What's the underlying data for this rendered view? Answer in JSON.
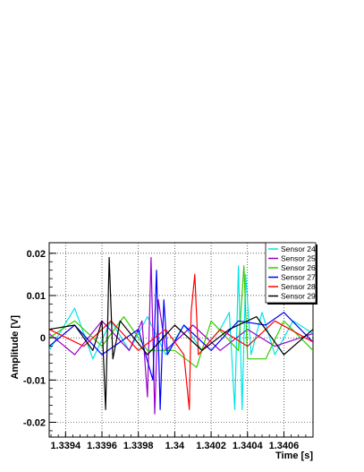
{
  "chart_data": {
    "type": "line",
    "xlabel": "Time [s]",
    "ylabel": "Amplitude [V]",
    "xlim": [
      1.33931,
      1.34076
    ],
    "ylim": [
      -0.0235,
      0.0225
    ],
    "xticks": [
      1.3394,
      1.3396,
      1.3398,
      1.34,
      1.3402,
      1.3404,
      1.3406
    ],
    "xtick_labels": [
      "1.3394",
      "1.3396",
      "1.3398",
      "1.34",
      "1.3402",
      "1.3404",
      "1.3406"
    ],
    "yticks": [
      0.02,
      0.01,
      0,
      -0.01,
      -0.02
    ],
    "ytick_labels": [
      "0.02",
      "0.01",
      "0",
      "-0.01",
      "-0.02"
    ],
    "grid": true,
    "legend_position": "top-right",
    "series": [
      {
        "name": "Sensor 24",
        "color": "#00e5e5",
        "x": [
          1.33931,
          1.33945,
          1.33955,
          1.33965,
          1.33975,
          1.33985,
          1.33995,
          1.34005,
          1.34015,
          1.34025,
          1.3403,
          1.34033,
          1.34035,
          1.34037,
          1.34039,
          1.34042,
          1.34048,
          1.34055,
          1.34065,
          1.34076
        ],
        "y": [
          -0.003,
          0.007,
          -0.005,
          0.004,
          -0.003,
          0.005,
          -0.004,
          0.003,
          -0.003,
          0.002,
          0.006,
          -0.017,
          0.017,
          -0.017,
          0.015,
          -0.004,
          0.006,
          -0.004,
          0.004,
          0.001
        ]
      },
      {
        "name": "Sensor 25",
        "color": "#9900cc",
        "x": [
          1.33931,
          1.33945,
          1.3396,
          1.33975,
          1.33982,
          1.33985,
          1.33987,
          1.33989,
          1.33991,
          1.33995,
          1.3401,
          1.34025,
          1.3404,
          1.34055,
          1.34076
        ],
        "y": [
          0.001,
          -0.004,
          0.004,
          -0.003,
          0.004,
          -0.014,
          0.019,
          -0.018,
          0.009,
          -0.003,
          0.003,
          -0.003,
          0.002,
          -0.002,
          0.001
        ]
      },
      {
        "name": "Sensor 26",
        "color": "#33cc00",
        "x": [
          1.33931,
          1.33945,
          1.3396,
          1.33972,
          1.33985,
          1.34,
          1.34012,
          1.3402,
          1.34035,
          1.34038,
          1.3404,
          1.3405,
          1.3406,
          1.34076
        ],
        "y": [
          0.0,
          0.004,
          -0.002,
          0.005,
          -0.003,
          -0.003,
          -0.007,
          0.004,
          -0.003,
          0.017,
          -0.005,
          -0.005,
          0.004,
          -0.003
        ]
      },
      {
        "name": "Sensor 27",
        "color": "#0000ff",
        "x": [
          1.33931,
          1.33945,
          1.3396,
          1.3398,
          1.33988,
          1.3399,
          1.33992,
          1.33994,
          1.33996,
          1.34005,
          1.3402,
          1.34035,
          1.3405,
          1.3406,
          1.34076
        ],
        "y": [
          -0.002,
          0.003,
          -0.004,
          0.002,
          -0.01,
          0.016,
          -0.017,
          0.009,
          -0.004,
          0.003,
          -0.003,
          0.004,
          0.003,
          0.006,
          -0.001
        ]
      },
      {
        "name": "Sensor 28",
        "color": "#ff0000",
        "x": [
          1.33931,
          1.3395,
          1.33965,
          1.3398,
          1.33995,
          1.34005,
          1.34008,
          1.34009,
          1.34011,
          1.34013,
          1.34025,
          1.3404,
          1.34055,
          1.34076
        ],
        "y": [
          0.002,
          -0.002,
          0.004,
          -0.003,
          0.002,
          -0.004,
          -0.017,
          0.006,
          0.015,
          -0.004,
          0.002,
          -0.002,
          0.004,
          -0.001
        ]
      },
      {
        "name": "Sensor 29",
        "color": "#000000",
        "x": [
          1.33931,
          1.33945,
          1.33955,
          1.3396,
          1.33962,
          1.33964,
          1.33966,
          1.3397,
          1.33985,
          1.34,
          1.34015,
          1.3403,
          1.34045,
          1.3406,
          1.34076
        ],
        "y": [
          0.002,
          0.003,
          -0.003,
          0.004,
          -0.017,
          0.019,
          -0.005,
          0.004,
          -0.004,
          0.003,
          -0.003,
          0.002,
          0.005,
          -0.004,
          0.002
        ]
      }
    ]
  }
}
